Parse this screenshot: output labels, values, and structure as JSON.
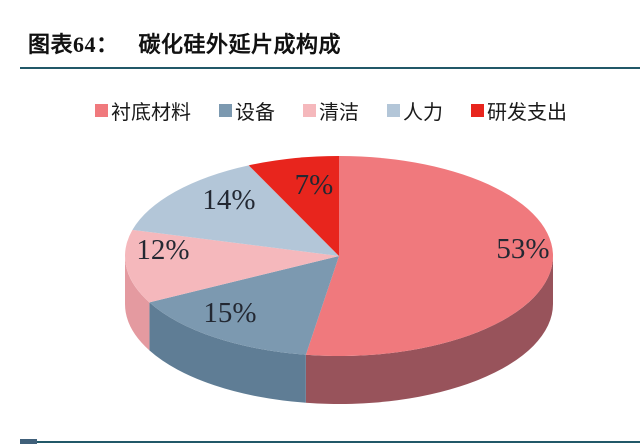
{
  "header": {
    "title_prefix": "图表64：",
    "title": "碳化硅外延片成构成"
  },
  "colors": {
    "rule": "#215868",
    "title_text": "#111111",
    "data_label_text": "#232832"
  },
  "chart_data": {
    "type": "pie",
    "style": "3d",
    "title": "碳化硅外延片成构成",
    "legend_position": "top",
    "start_angle_deg": 0,
    "direction": "clockwise",
    "categories": [
      "衬底材料",
      "设备",
      "清洁",
      "人力",
      "研发支出"
    ],
    "values": [
      53,
      15,
      12,
      14,
      7
    ],
    "data_labels": [
      "53%",
      "15%",
      "12%",
      "14%",
      "7%"
    ],
    "series": [
      {
        "name": "衬底材料",
        "value": 53,
        "color": "#F0797D",
        "side_color": "#98535B"
      },
      {
        "name": "设备",
        "value": 15,
        "color": "#7C99B0",
        "side_color": "#5F7D95"
      },
      {
        "name": "清洁",
        "value": 12,
        "color": "#F5B8BC",
        "side_color": "#E49AA0"
      },
      {
        "name": "人力",
        "value": 14,
        "color": "#B3C6D8",
        "side_color": "#8FA9BE"
      },
      {
        "name": "研发支出",
        "value": 7,
        "color": "#E8251D",
        "side_color": "#A01A15"
      }
    ]
  }
}
